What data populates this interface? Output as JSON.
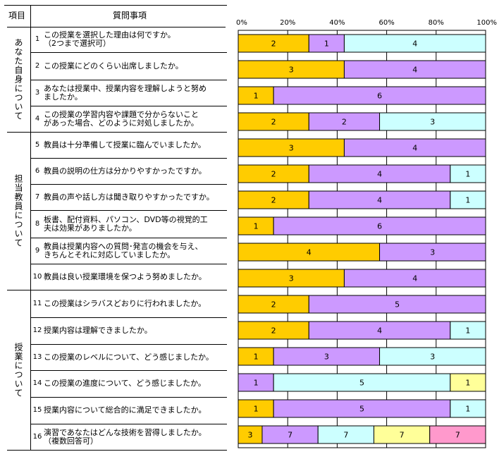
{
  "header": {
    "category": "項目",
    "question": "質問事項"
  },
  "groups": [
    {
      "label": "あなた自身について",
      "rows": [
        0,
        3
      ]
    },
    {
      "label": "担当教員について",
      "rows": [
        4,
        9
      ]
    },
    {
      "label": "授業について",
      "rows": [
        10,
        15
      ]
    }
  ],
  "questions": [
    {
      "no": "1",
      "text": "この授業を選択した理由は何ですか。\n（2つまで選択可）"
    },
    {
      "no": "2",
      "text": "この授業にどのくらい出席しましたか。"
    },
    {
      "no": "3",
      "text": "あなたは授業中、授業内容を理解しようと努め\nましたか。"
    },
    {
      "no": "4",
      "text": "この授業の学習内容や課題で分からないこと\nがあった場合、どのように対処しましたか。"
    },
    {
      "no": "5",
      "text": "教員は十分準備して授業に臨んでいましたか。"
    },
    {
      "no": "6",
      "text": "教員の説明の仕方は分かりやすかったですか。"
    },
    {
      "no": "7",
      "text": "教員の声や話し方は聞き取りやすかったですか。"
    },
    {
      "no": "8",
      "text": "板書、配付資料、パソコン、DVD等の視覚的工\n夫は効果がありましたか。"
    },
    {
      "no": "9",
      "text": "教員は授業内容への質問･発言の機会を与え、\nきちんとそれに対応していましたか。"
    },
    {
      "no": "10",
      "text": "教員は良い授業環境を保つよう努めましたか。"
    },
    {
      "no": "11",
      "text": "この授業はシラバスどおりに行われましたか。"
    },
    {
      "no": "12",
      "text": "授業内容は理解できましたか。"
    },
    {
      "no": "13",
      "text": "この授業のレベルについて、どう感じましたか。"
    },
    {
      "no": "14",
      "text": "この授業の進度について、どう感じましたか。"
    },
    {
      "no": "15",
      "text": "授業内容について総合的に満足できましたか。"
    },
    {
      "no": "16",
      "text": "演習であなたはどんな技術を習得しましたか。\n（複数回答可）"
    }
  ],
  "chart_data": {
    "type": "bar",
    "orientation": "horizontal-stacked-100%",
    "xlim": [
      0,
      100
    ],
    "xticks": [
      "0%",
      "20%",
      "40%",
      "60%",
      "80%",
      "100%"
    ],
    "colors": [
      "#FFCC00",
      "#CC99FF",
      "#CCFFFF",
      "#FFFF99",
      "#FF99CC"
    ],
    "rows": [
      [
        {
          "v": 2,
          "c": 0
        },
        {
          "v": 1,
          "c": 1
        },
        {
          "v": 4,
          "c": 2
        }
      ],
      [
        {
          "v": 3,
          "c": 0
        },
        {
          "v": 4,
          "c": 1
        }
      ],
      [
        {
          "v": 1,
          "c": 0
        },
        {
          "v": 6,
          "c": 1
        }
      ],
      [
        {
          "v": 2,
          "c": 0
        },
        {
          "v": 2,
          "c": 1
        },
        {
          "v": 3,
          "c": 2
        }
      ],
      [
        {
          "v": 3,
          "c": 0
        },
        {
          "v": 4,
          "c": 1
        }
      ],
      [
        {
          "v": 2,
          "c": 0
        },
        {
          "v": 4,
          "c": 1
        },
        {
          "v": 1,
          "c": 2
        }
      ],
      [
        {
          "v": 2,
          "c": 0
        },
        {
          "v": 4,
          "c": 1
        },
        {
          "v": 1,
          "c": 2
        }
      ],
      [
        {
          "v": 1,
          "c": 0
        },
        {
          "v": 6,
          "c": 1
        }
      ],
      [
        {
          "v": 4,
          "c": 0
        },
        {
          "v": 3,
          "c": 1
        }
      ],
      [
        {
          "v": 3,
          "c": 0
        },
        {
          "v": 4,
          "c": 1
        }
      ],
      [
        {
          "v": 2,
          "c": 0
        },
        {
          "v": 5,
          "c": 1
        }
      ],
      [
        {
          "v": 2,
          "c": 0
        },
        {
          "v": 4,
          "c": 1
        },
        {
          "v": 1,
          "c": 2
        }
      ],
      [
        {
          "v": 1,
          "c": 0
        },
        {
          "v": 3,
          "c": 1
        },
        {
          "v": 3,
          "c": 2
        }
      ],
      [
        {
          "v": 1,
          "c": 1
        },
        {
          "v": 5,
          "c": 2
        },
        {
          "v": 1,
          "c": 3
        }
      ],
      [
        {
          "v": 1,
          "c": 0
        },
        {
          "v": 5,
          "c": 1
        },
        {
          "v": 1,
          "c": 2
        }
      ],
      [
        {
          "v": 3,
          "c": 0
        },
        {
          "v": 7,
          "c": 1
        },
        {
          "v": 7,
          "c": 2
        },
        {
          "v": 7,
          "c": 3
        },
        {
          "v": 7,
          "c": 4
        }
      ]
    ]
  }
}
